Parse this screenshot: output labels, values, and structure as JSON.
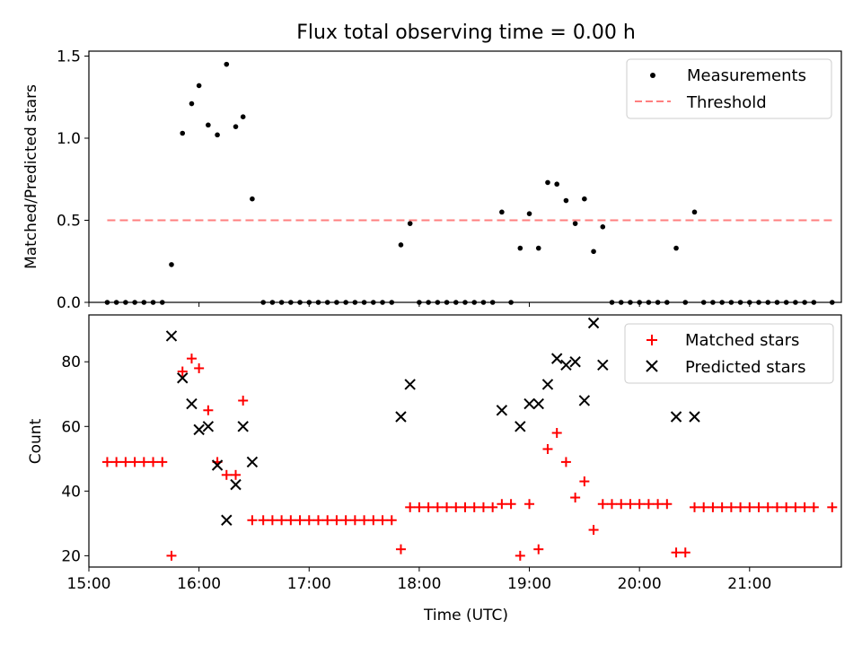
{
  "figure": {
    "title": "Flux total observing time = 0.00 h"
  },
  "chart_data": [
    {
      "type": "scatter",
      "panel": "top",
      "title": "Flux total observing time = 0.00 h",
      "xlabel": "",
      "ylabel": "Matched/Predicted stars",
      "xlim": [
        "15:00",
        "21:50"
      ],
      "ylim": [
        0,
        1.53
      ],
      "yticks": [
        0.0,
        0.5,
        1.0,
        1.5
      ],
      "ytick_labels": [
        "0.0",
        "0.5",
        "1.0",
        "1.5"
      ],
      "grid": false,
      "legend_position": "top-right",
      "series": [
        {
          "name": "Measurements",
          "color": "#000000",
          "marker": "dot",
          "points": [
            [
              "15:10",
              0
            ],
            [
              "15:15",
              0
            ],
            [
              "15:20",
              0
            ],
            [
              "15:25",
              0
            ],
            [
              "15:30",
              0
            ],
            [
              "15:35",
              0
            ],
            [
              "15:40",
              0
            ],
            [
              "15:45",
              0.23
            ],
            [
              "15:51",
              1.03
            ],
            [
              "15:56",
              1.21
            ],
            [
              "16:00",
              1.32
            ],
            [
              "16:05",
              1.08
            ],
            [
              "16:10",
              1.02
            ],
            [
              "16:15",
              1.45
            ],
            [
              "16:20",
              1.07
            ],
            [
              "16:24",
              1.13
            ],
            [
              "16:29",
              0.63
            ],
            [
              "16:35",
              0
            ],
            [
              "16:40",
              0
            ],
            [
              "16:45",
              0
            ],
            [
              "16:50",
              0
            ],
            [
              "16:55",
              0
            ],
            [
              "17:00",
              0
            ],
            [
              "17:05",
              0
            ],
            [
              "17:10",
              0
            ],
            [
              "17:15",
              0
            ],
            [
              "17:20",
              0
            ],
            [
              "17:25",
              0
            ],
            [
              "17:30",
              0
            ],
            [
              "17:35",
              0
            ],
            [
              "17:40",
              0
            ],
            [
              "17:45",
              0
            ],
            [
              "17:50",
              0.35
            ],
            [
              "17:55",
              0.48
            ],
            [
              "18:00",
              0
            ],
            [
              "18:05",
              0
            ],
            [
              "18:10",
              0
            ],
            [
              "18:15",
              0
            ],
            [
              "18:20",
              0
            ],
            [
              "18:25",
              0
            ],
            [
              "18:30",
              0
            ],
            [
              "18:35",
              0
            ],
            [
              "18:40",
              0
            ],
            [
              "18:45",
              0.55
            ],
            [
              "18:50",
              0
            ],
            [
              "18:55",
              0.33
            ],
            [
              "19:00",
              0.54
            ],
            [
              "19:05",
              0.33
            ],
            [
              "19:10",
              0.73
            ],
            [
              "19:15",
              0.72
            ],
            [
              "19:20",
              0.62
            ],
            [
              "19:25",
              0.48
            ],
            [
              "19:30",
              0.63
            ],
            [
              "19:35",
              0.31
            ],
            [
              "19:40",
              0.46
            ],
            [
              "19:45",
              0
            ],
            [
              "19:50",
              0
            ],
            [
              "19:55",
              0
            ],
            [
              "20:00",
              0
            ],
            [
              "20:05",
              0
            ],
            [
              "20:10",
              0
            ],
            [
              "20:15",
              0
            ],
            [
              "20:20",
              0.33
            ],
            [
              "20:25",
              0
            ],
            [
              "20:30",
              0.55
            ],
            [
              "20:35",
              0
            ],
            [
              "20:40",
              0
            ],
            [
              "20:45",
              0
            ],
            [
              "20:50",
              0
            ],
            [
              "20:55",
              0
            ],
            [
              "21:00",
              0
            ],
            [
              "21:05",
              0
            ],
            [
              "21:10",
              0
            ],
            [
              "21:15",
              0
            ],
            [
              "21:20",
              0
            ],
            [
              "21:25",
              0
            ],
            [
              "21:30",
              0
            ],
            [
              "21:35",
              0
            ],
            [
              "21:45",
              0
            ]
          ]
        },
        {
          "name": "Threshold",
          "color": "#ff7f7f",
          "style": "dashed",
          "points": [
            [
              "15:10",
              0.5
            ],
            [
              "21:45",
              0.5
            ]
          ]
        }
      ]
    },
    {
      "type": "scatter",
      "panel": "bottom",
      "xlabel": "Time (UTC)",
      "ylabel": "Count",
      "xlim": [
        "15:00",
        "21:50"
      ],
      "ylim": [
        16.5,
        94.5
      ],
      "xticks": [
        "15:00",
        "16:00",
        "17:00",
        "18:00",
        "19:00",
        "20:00",
        "21:00"
      ],
      "yticks": [
        20,
        40,
        60,
        80
      ],
      "grid": false,
      "legend_position": "top-right",
      "series": [
        {
          "name": "Matched stars",
          "color": "#ff0000",
          "marker": "plus",
          "points": [
            [
              "15:10",
              49
            ],
            [
              "15:15",
              49
            ],
            [
              "15:20",
              49
            ],
            [
              "15:25",
              49
            ],
            [
              "15:30",
              49
            ],
            [
              "15:35",
              49
            ],
            [
              "15:40",
              49
            ],
            [
              "15:45",
              20
            ],
            [
              "15:51",
              77
            ],
            [
              "15:56",
              81
            ],
            [
              "16:00",
              78
            ],
            [
              "16:05",
              65
            ],
            [
              "16:10",
              49
            ],
            [
              "16:15",
              45
            ],
            [
              "16:20",
              45
            ],
            [
              "16:24",
              68
            ],
            [
              "16:29",
              31
            ],
            [
              "16:35",
              31
            ],
            [
              "16:40",
              31
            ],
            [
              "16:45",
              31
            ],
            [
              "16:50",
              31
            ],
            [
              "16:55",
              31
            ],
            [
              "17:00",
              31
            ],
            [
              "17:05",
              31
            ],
            [
              "17:10",
              31
            ],
            [
              "17:15",
              31
            ],
            [
              "17:20",
              31
            ],
            [
              "17:25",
              31
            ],
            [
              "17:30",
              31
            ],
            [
              "17:35",
              31
            ],
            [
              "17:40",
              31
            ],
            [
              "17:45",
              31
            ],
            [
              "17:50",
              22
            ],
            [
              "17:55",
              35
            ],
            [
              "18:00",
              35
            ],
            [
              "18:05",
              35
            ],
            [
              "18:10",
              35
            ],
            [
              "18:15",
              35
            ],
            [
              "18:20",
              35
            ],
            [
              "18:25",
              35
            ],
            [
              "18:30",
              35
            ],
            [
              "18:35",
              35
            ],
            [
              "18:40",
              35
            ],
            [
              "18:45",
              36
            ],
            [
              "18:50",
              36
            ],
            [
              "18:55",
              20
            ],
            [
              "19:00",
              36
            ],
            [
              "19:05",
              22
            ],
            [
              "19:10",
              53
            ],
            [
              "19:15",
              58
            ],
            [
              "19:20",
              49
            ],
            [
              "19:25",
              38
            ],
            [
              "19:30",
              43
            ],
            [
              "19:35",
              28
            ],
            [
              "19:40",
              36
            ],
            [
              "19:45",
              36
            ],
            [
              "19:50",
              36
            ],
            [
              "19:55",
              36
            ],
            [
              "20:00",
              36
            ],
            [
              "20:05",
              36
            ],
            [
              "20:10",
              36
            ],
            [
              "20:15",
              36
            ],
            [
              "20:20",
              21
            ],
            [
              "20:25",
              21
            ],
            [
              "20:30",
              35
            ],
            [
              "20:35",
              35
            ],
            [
              "20:40",
              35
            ],
            [
              "20:45",
              35
            ],
            [
              "20:50",
              35
            ],
            [
              "20:55",
              35
            ],
            [
              "21:00",
              35
            ],
            [
              "21:05",
              35
            ],
            [
              "21:10",
              35
            ],
            [
              "21:15",
              35
            ],
            [
              "21:20",
              35
            ],
            [
              "21:25",
              35
            ],
            [
              "21:30",
              35
            ],
            [
              "21:35",
              35
            ],
            [
              "21:45",
              35
            ]
          ]
        },
        {
          "name": "Predicted stars",
          "color": "#000000",
          "marker": "x",
          "points": [
            [
              "15:45",
              88
            ],
            [
              "15:51",
              75
            ],
            [
              "15:56",
              67
            ],
            [
              "16:00",
              59
            ],
            [
              "16:05",
              60
            ],
            [
              "16:10",
              48
            ],
            [
              "16:15",
              31
            ],
            [
              "16:20",
              42
            ],
            [
              "16:24",
              60
            ],
            [
              "16:29",
              49
            ],
            [
              "17:50",
              63
            ],
            [
              "17:55",
              73
            ],
            [
              "18:45",
              65
            ],
            [
              "18:55",
              60
            ],
            [
              "19:00",
              67
            ],
            [
              "19:05",
              67
            ],
            [
              "19:10",
              73
            ],
            [
              "19:15",
              81
            ],
            [
              "19:20",
              79
            ],
            [
              "19:25",
              80
            ],
            [
              "19:30",
              68
            ],
            [
              "19:35",
              92
            ],
            [
              "19:40",
              79
            ],
            [
              "20:20",
              63
            ],
            [
              "20:30",
              63
            ]
          ]
        }
      ]
    }
  ]
}
